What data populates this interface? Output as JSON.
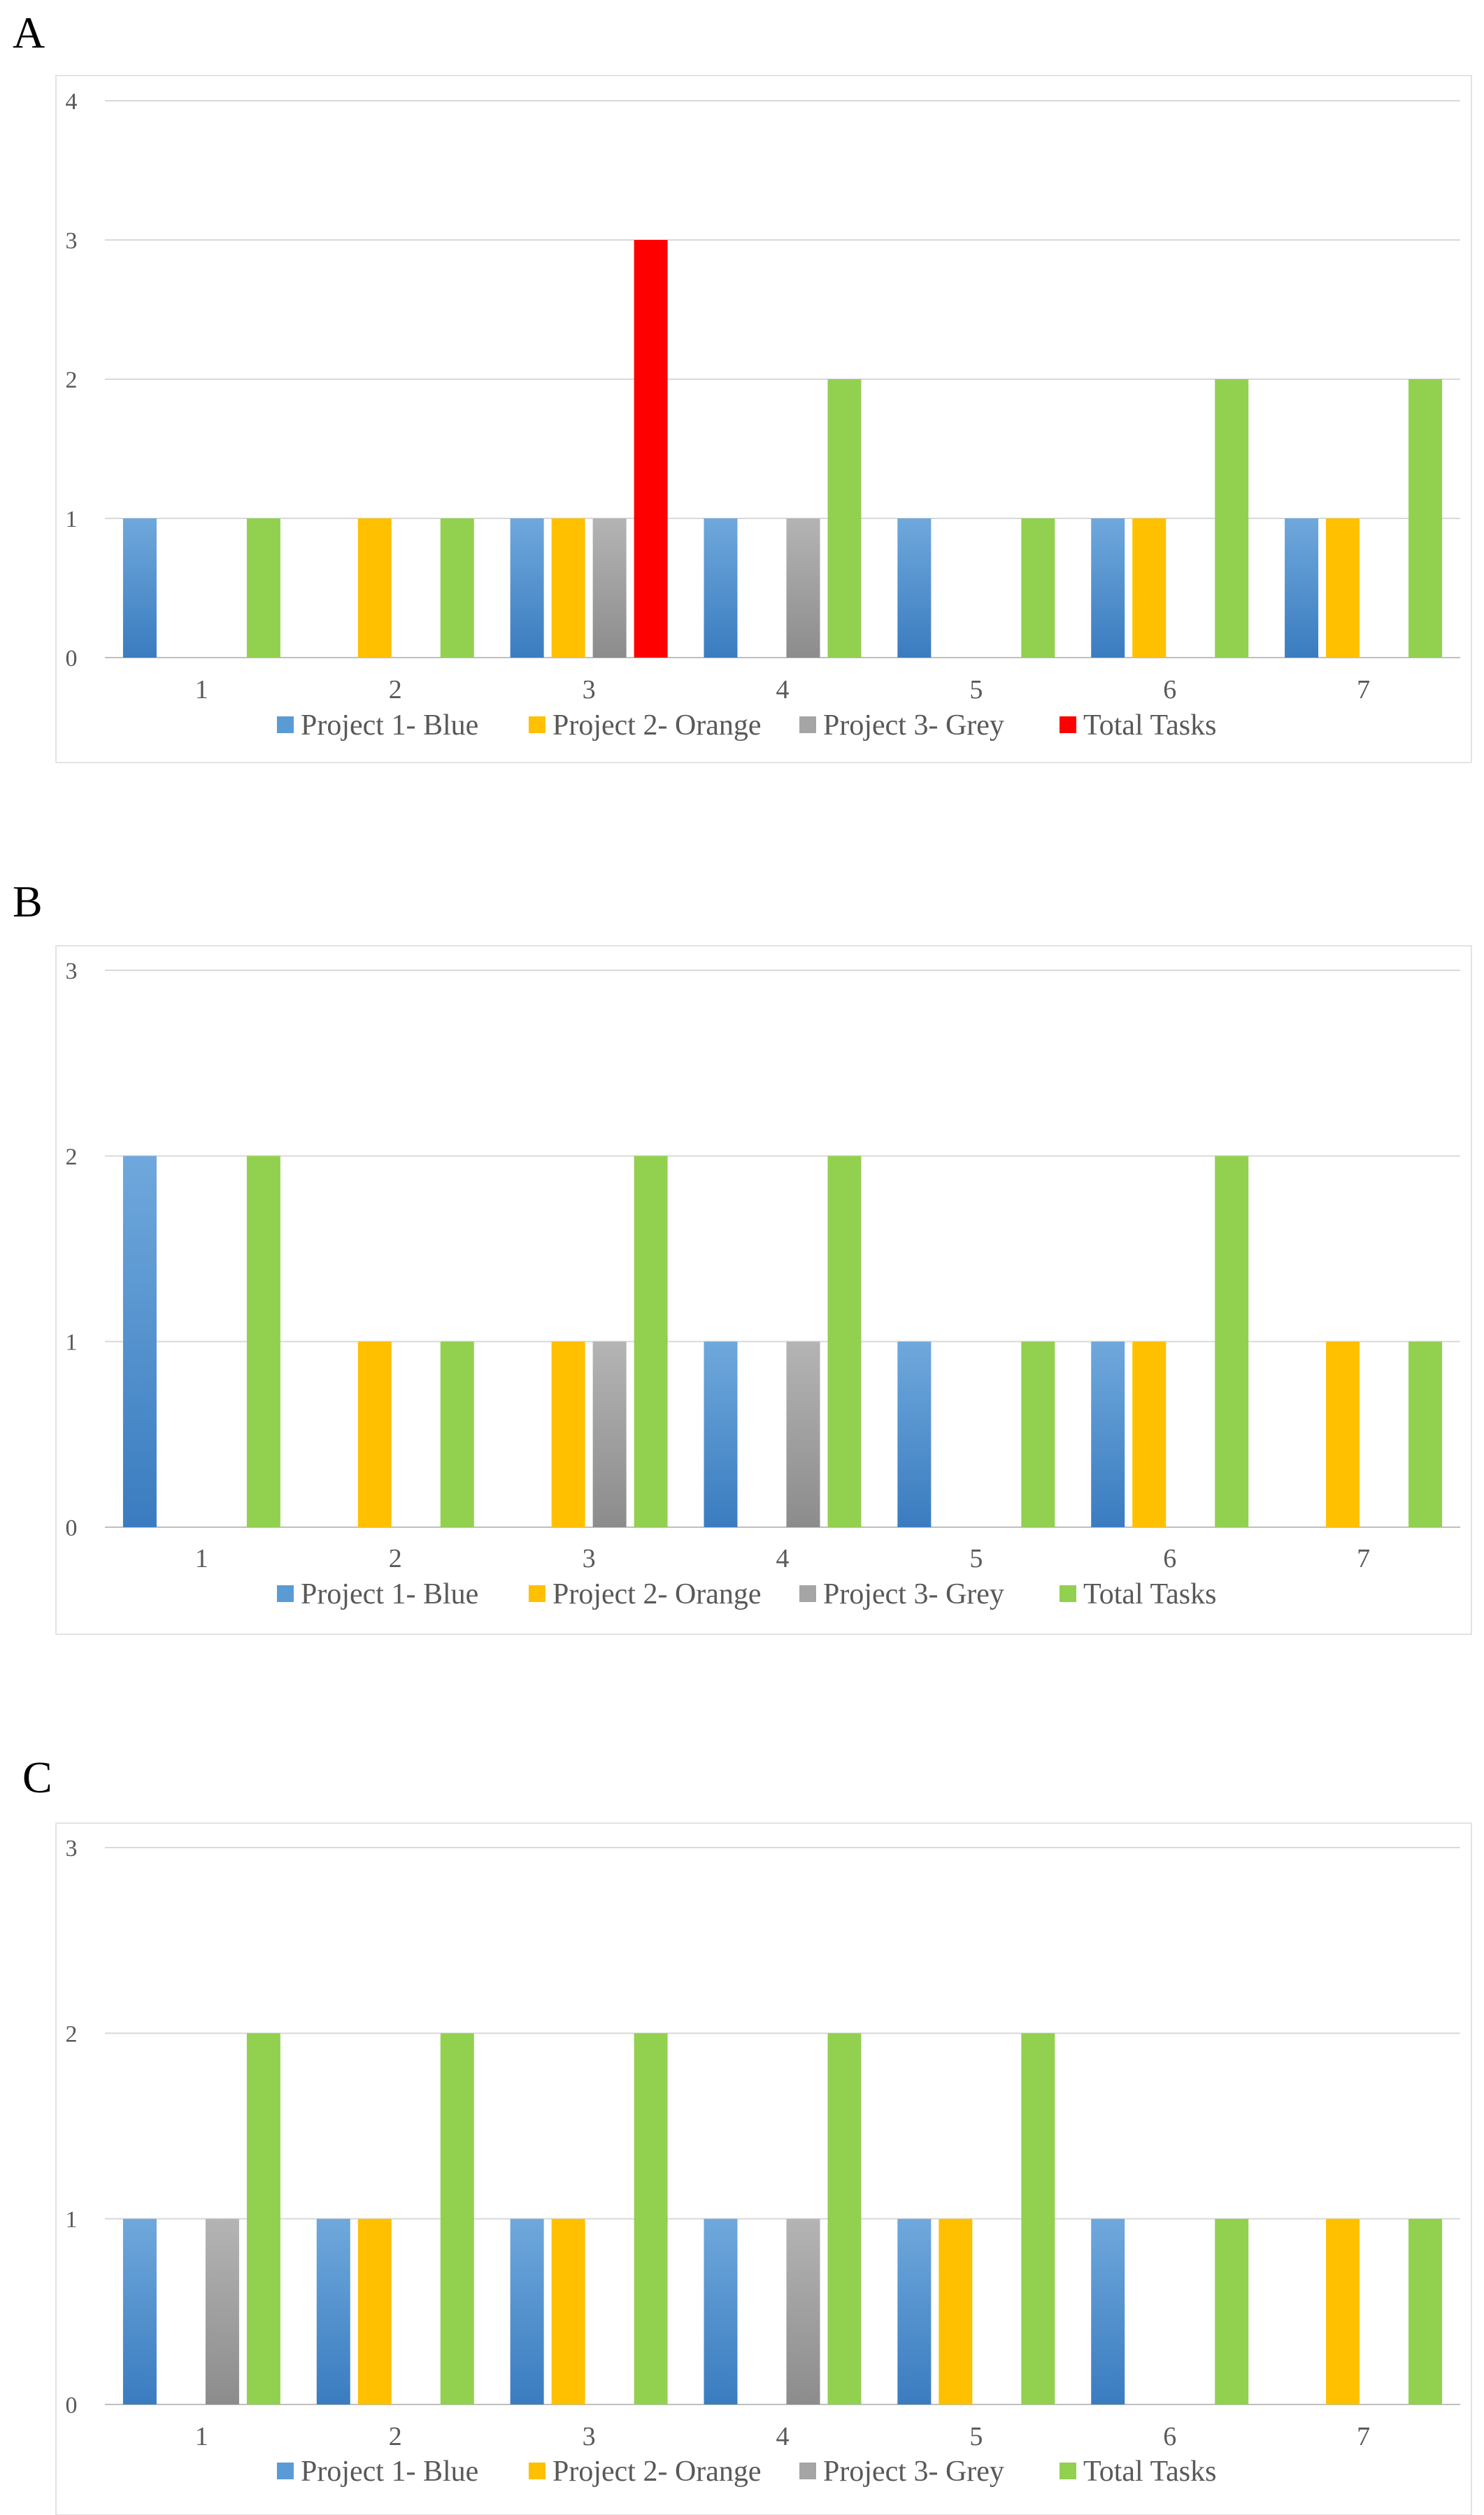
{
  "colors": {
    "project1": "#5b9bd5",
    "project1_dark": "#3a7cc0",
    "project2": "#ffc000",
    "project3": "#a5a5a5",
    "project3_dark": "#8c8c8c",
    "total": "#92d050",
    "total_highlight": "#ff0000",
    "grid": "#d9d9d9",
    "frame": "#e3e3e3"
  },
  "chart_data": [
    {
      "panel": "A",
      "type": "bar",
      "categories": [
        "1",
        "2",
        "3",
        "4",
        "5",
        "6",
        "7"
      ],
      "ylim": [
        0,
        4
      ],
      "yticks": [
        "0",
        "1",
        "2",
        "3",
        "4"
      ],
      "series": [
        {
          "name": "Project 1- Blue",
          "key": "project1",
          "values": [
            1,
            0,
            1,
            1,
            1,
            1,
            1
          ]
        },
        {
          "name": "Project 2- Orange",
          "key": "project2",
          "values": [
            0,
            1,
            1,
            0,
            0,
            1,
            1
          ]
        },
        {
          "name": "Project 3- Grey",
          "key": "project3",
          "values": [
            0,
            0,
            1,
            1,
            0,
            0,
            0
          ]
        },
        {
          "name": "Total Tasks",
          "key": "total",
          "values": [
            1,
            1,
            3,
            2,
            1,
            2,
            2
          ],
          "highlight_index": 2
        }
      ],
      "legend": [
        "Project 1- Blue",
        "Project 2- Orange",
        "Project 3- Grey",
        "Total Tasks"
      ],
      "legend_total_color": "total_highlight",
      "title": "",
      "xlabel": "",
      "ylabel": "",
      "grid": true,
      "legend_position": "bottom"
    },
    {
      "panel": "B",
      "type": "bar",
      "categories": [
        "1",
        "2",
        "3",
        "4",
        "5",
        "6",
        "7"
      ],
      "ylim": [
        0,
        3
      ],
      "yticks": [
        "0",
        "1",
        "2",
        "3"
      ],
      "series": [
        {
          "name": "Project 1- Blue",
          "key": "project1",
          "values": [
            2,
            0,
            0,
            1,
            1,
            1,
            0
          ]
        },
        {
          "name": "Project 2- Orange",
          "key": "project2",
          "values": [
            0,
            1,
            1,
            0,
            0,
            1,
            1
          ]
        },
        {
          "name": "Project 3- Grey",
          "key": "project3",
          "values": [
            0,
            0,
            1,
            1,
            0,
            0,
            0
          ]
        },
        {
          "name": "Total Tasks",
          "key": "total",
          "values": [
            2,
            1,
            2,
            2,
            1,
            2,
            1
          ]
        }
      ],
      "legend": [
        "Project 1- Blue",
        "Project 2- Orange",
        "Project 3- Grey",
        "Total Tasks"
      ],
      "legend_total_color": "total",
      "title": "",
      "xlabel": "",
      "ylabel": "",
      "grid": true,
      "legend_position": "bottom"
    },
    {
      "panel": "C",
      "type": "bar",
      "categories": [
        "1",
        "2",
        "3",
        "4",
        "5",
        "6",
        "7"
      ],
      "ylim": [
        0,
        3
      ],
      "yticks": [
        "0",
        "1",
        "2",
        "3"
      ],
      "series": [
        {
          "name": "Project 1- Blue",
          "key": "project1",
          "values": [
            1,
            1,
            1,
            1,
            1,
            1,
            0
          ]
        },
        {
          "name": "Project 2- Orange",
          "key": "project2",
          "values": [
            0,
            1,
            1,
            0,
            1,
            0,
            1
          ]
        },
        {
          "name": "Project 3- Grey",
          "key": "project3",
          "values": [
            1,
            0,
            0,
            1,
            0,
            0,
            0
          ]
        },
        {
          "name": "Total Tasks",
          "key": "total",
          "values": [
            2,
            2,
            2,
            2,
            2,
            1,
            1
          ]
        }
      ],
      "legend": [
        "Project 1- Blue",
        "Project 2- Orange",
        "Project 3- Grey",
        "Total Tasks"
      ],
      "legend_total_color": "total",
      "title": "",
      "xlabel": "",
      "ylabel": "",
      "grid": true,
      "legend_position": "bottom"
    }
  ]
}
